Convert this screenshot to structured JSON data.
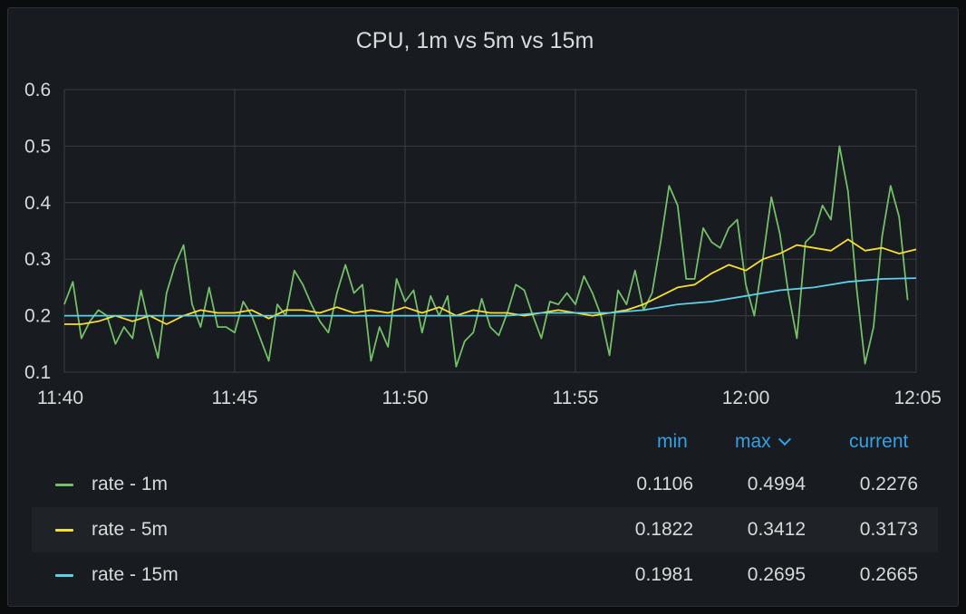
{
  "panel": {
    "title": "CPU, 1m vs 5m vs 15m"
  },
  "legend": {
    "columns": {
      "min": "min",
      "max": "max",
      "current": "current"
    },
    "sort_icon": "chevron-down-icon"
  },
  "colors": {
    "background": "#181b1f",
    "grid": "#3a3d42",
    "text": "#d8d9da",
    "header": "#33a2e5"
  },
  "chart_data": {
    "type": "line",
    "title": "CPU, 1m vs 5m vs 15m",
    "xlabel": "",
    "ylabel": "",
    "ylim": [
      0.1,
      0.6
    ],
    "yticks": [
      "0.1",
      "0.2",
      "0.3",
      "0.4",
      "0.5",
      "0.6"
    ],
    "xlim": [
      "11:40",
      "12:05"
    ],
    "xticks": [
      "11:40",
      "11:45",
      "11:50",
      "11:55",
      "12:00",
      "12:05"
    ],
    "grid": true,
    "legend_position": "bottom",
    "series": [
      {
        "name": "rate - 1m",
        "color": "#73bf69",
        "stats": {
          "min": "0.1106",
          "max": "0.4994",
          "current": "0.2276"
        },
        "points": [
          [
            "11:40:00",
            0.22
          ],
          [
            "11:40:15",
            0.26
          ],
          [
            "11:40:30",
            0.16
          ],
          [
            "11:40:45",
            0.19
          ],
          [
            "11:41:00",
            0.21
          ],
          [
            "11:41:15",
            0.2
          ],
          [
            "11:41:30",
            0.15
          ],
          [
            "11:41:45",
            0.18
          ],
          [
            "11:42:00",
            0.16
          ],
          [
            "11:42:15",
            0.245
          ],
          [
            "11:42:30",
            0.18
          ],
          [
            "11:42:45",
            0.125
          ],
          [
            "11:43:00",
            0.24
          ],
          [
            "11:43:15",
            0.29
          ],
          [
            "11:43:30",
            0.325
          ],
          [
            "11:43:45",
            0.22
          ],
          [
            "11:44:00",
            0.18
          ],
          [
            "11:44:15",
            0.25
          ],
          [
            "11:44:30",
            0.18
          ],
          [
            "11:44:45",
            0.18
          ],
          [
            "11:45:00",
            0.17
          ],
          [
            "11:45:15",
            0.225
          ],
          [
            "11:45:30",
            0.2
          ],
          [
            "11:45:45",
            0.16
          ],
          [
            "11:46:00",
            0.12
          ],
          [
            "11:46:15",
            0.22
          ],
          [
            "11:46:30",
            0.2
          ],
          [
            "11:46:45",
            0.28
          ],
          [
            "11:47:00",
            0.255
          ],
          [
            "11:47:15",
            0.22
          ],
          [
            "11:47:30",
            0.19
          ],
          [
            "11:47:45",
            0.17
          ],
          [
            "11:48:00",
            0.24
          ],
          [
            "11:48:15",
            0.29
          ],
          [
            "11:48:30",
            0.24
          ],
          [
            "11:48:45",
            0.255
          ],
          [
            "11:49:00",
            0.12
          ],
          [
            "11:49:15",
            0.18
          ],
          [
            "11:49:30",
            0.145
          ],
          [
            "11:49:45",
            0.265
          ],
          [
            "11:50:00",
            0.225
          ],
          [
            "11:50:15",
            0.245
          ],
          [
            "11:50:30",
            0.17
          ],
          [
            "11:50:45",
            0.235
          ],
          [
            "11:51:00",
            0.2
          ],
          [
            "11:51:15",
            0.235
          ],
          [
            "11:51:30",
            0.11
          ],
          [
            "11:51:45",
            0.155
          ],
          [
            "11:52:00",
            0.17
          ],
          [
            "11:52:15",
            0.23
          ],
          [
            "11:52:30",
            0.18
          ],
          [
            "11:52:45",
            0.165
          ],
          [
            "11:53:00",
            0.205
          ],
          [
            "11:53:15",
            0.255
          ],
          [
            "11:53:30",
            0.245
          ],
          [
            "11:53:45",
            0.2
          ],
          [
            "11:54:00",
            0.16
          ],
          [
            "11:54:15",
            0.225
          ],
          [
            "11:54:30",
            0.22
          ],
          [
            "11:54:45",
            0.24
          ],
          [
            "11:55:00",
            0.22
          ],
          [
            "11:55:15",
            0.27
          ],
          [
            "11:55:30",
            0.24
          ],
          [
            "11:55:45",
            0.2
          ],
          [
            "11:56:00",
            0.13
          ],
          [
            "11:56:15",
            0.245
          ],
          [
            "11:56:30",
            0.22
          ],
          [
            "11:56:45",
            0.28
          ],
          [
            "11:57:00",
            0.21
          ],
          [
            "11:57:15",
            0.24
          ],
          [
            "11:57:30",
            0.33
          ],
          [
            "11:57:45",
            0.43
          ],
          [
            "11:58:00",
            0.395
          ],
          [
            "11:58:15",
            0.265
          ],
          [
            "11:58:30",
            0.265
          ],
          [
            "11:58:45",
            0.355
          ],
          [
            "11:59:00",
            0.33
          ],
          [
            "11:59:15",
            0.32
          ],
          [
            "11:59:30",
            0.355
          ],
          [
            "11:59:45",
            0.37
          ],
          [
            "12:00:00",
            0.255
          ],
          [
            "12:00:15",
            0.2
          ],
          [
            "12:00:30",
            0.3
          ],
          [
            "12:00:45",
            0.41
          ],
          [
            "12:01:00",
            0.345
          ],
          [
            "12:01:15",
            0.24
          ],
          [
            "12:01:30",
            0.16
          ],
          [
            "12:01:45",
            0.33
          ],
          [
            "12:02:00",
            0.345
          ],
          [
            "12:02:15",
            0.395
          ],
          [
            "12:02:30",
            0.37
          ],
          [
            "12:02:45",
            0.5
          ],
          [
            "12:03:00",
            0.42
          ],
          [
            "12:03:15",
            0.25
          ],
          [
            "12:03:30",
            0.115
          ],
          [
            "12:03:45",
            0.18
          ],
          [
            "12:04:00",
            0.34
          ],
          [
            "12:04:15",
            0.43
          ],
          [
            "12:04:30",
            0.375
          ],
          [
            "12:04:45",
            0.2276
          ]
        ]
      },
      {
        "name": "rate - 5m",
        "color": "#fade2a",
        "stats": {
          "min": "0.1822",
          "max": "0.3412",
          "current": "0.3173"
        },
        "points": [
          [
            "11:40:00",
            0.185
          ],
          [
            "11:40:30",
            0.185
          ],
          [
            "11:41:00",
            0.19
          ],
          [
            "11:41:30",
            0.2
          ],
          [
            "11:42:00",
            0.19
          ],
          [
            "11:42:30",
            0.2
          ],
          [
            "11:43:00",
            0.185
          ],
          [
            "11:43:30",
            0.2
          ],
          [
            "11:44:00",
            0.21
          ],
          [
            "11:44:30",
            0.205
          ],
          [
            "11:45:00",
            0.205
          ],
          [
            "11:45:30",
            0.21
          ],
          [
            "11:46:00",
            0.195
          ],
          [
            "11:46:30",
            0.21
          ],
          [
            "11:47:00",
            0.21
          ],
          [
            "11:47:30",
            0.205
          ],
          [
            "11:48:00",
            0.215
          ],
          [
            "11:48:30",
            0.205
          ],
          [
            "11:49:00",
            0.21
          ],
          [
            "11:49:30",
            0.205
          ],
          [
            "11:50:00",
            0.215
          ],
          [
            "11:50:30",
            0.205
          ],
          [
            "11:51:00",
            0.215
          ],
          [
            "11:51:30",
            0.2
          ],
          [
            "11:52:00",
            0.21
          ],
          [
            "11:52:30",
            0.205
          ],
          [
            "11:53:00",
            0.205
          ],
          [
            "11:53:30",
            0.2
          ],
          [
            "11:54:00",
            0.205
          ],
          [
            "11:54:30",
            0.21
          ],
          [
            "11:55:00",
            0.205
          ],
          [
            "11:55:30",
            0.2
          ],
          [
            "11:56:00",
            0.205
          ],
          [
            "11:56:30",
            0.21
          ],
          [
            "11:57:00",
            0.22
          ],
          [
            "11:57:30",
            0.235
          ],
          [
            "11:58:00",
            0.25
          ],
          [
            "11:58:30",
            0.255
          ],
          [
            "11:59:00",
            0.275
          ],
          [
            "11:59:30",
            0.29
          ],
          [
            "12:00:00",
            0.28
          ],
          [
            "12:00:30",
            0.3
          ],
          [
            "12:01:00",
            0.31
          ],
          [
            "12:01:30",
            0.325
          ],
          [
            "12:02:00",
            0.32
          ],
          [
            "12:02:30",
            0.315
          ],
          [
            "12:03:00",
            0.335
          ],
          [
            "12:03:30",
            0.315
          ],
          [
            "12:04:00",
            0.32
          ],
          [
            "12:04:30",
            0.31
          ],
          [
            "12:05:00",
            0.3173
          ]
        ]
      },
      {
        "name": "rate - 15m",
        "color": "#5cd0e8",
        "stats": {
          "min": "0.1981",
          "max": "0.2695",
          "current": "0.2665"
        },
        "points": [
          [
            "11:40:00",
            0.2
          ],
          [
            "11:41:00",
            0.2
          ],
          [
            "11:42:00",
            0.2
          ],
          [
            "11:43:00",
            0.2
          ],
          [
            "11:44:00",
            0.2
          ],
          [
            "11:45:00",
            0.2
          ],
          [
            "11:46:00",
            0.2
          ],
          [
            "11:47:00",
            0.2
          ],
          [
            "11:48:00",
            0.2
          ],
          [
            "11:49:00",
            0.2
          ],
          [
            "11:50:00",
            0.2
          ],
          [
            "11:51:00",
            0.2
          ],
          [
            "11:52:00",
            0.2
          ],
          [
            "11:53:00",
            0.2
          ],
          [
            "11:54:00",
            0.205
          ],
          [
            "11:55:00",
            0.205
          ],
          [
            "11:56:00",
            0.205
          ],
          [
            "11:57:00",
            0.21
          ],
          [
            "11:58:00",
            0.22
          ],
          [
            "11:59:00",
            0.225
          ],
          [
            "12:00:00",
            0.235
          ],
          [
            "12:01:00",
            0.245
          ],
          [
            "12:02:00",
            0.25
          ],
          [
            "12:03:00",
            0.26
          ],
          [
            "12:04:00",
            0.265
          ],
          [
            "12:05:00",
            0.2665
          ]
        ]
      }
    ]
  }
}
